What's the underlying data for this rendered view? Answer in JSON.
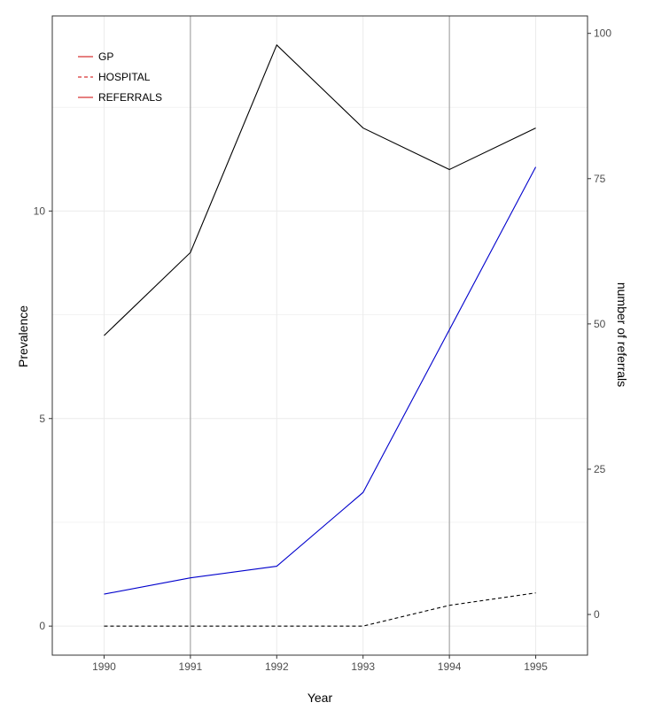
{
  "chart_data": {
    "type": "line",
    "title": "",
    "xlabel": "Year",
    "ylabel": "Prevalence",
    "y2label": "number of referrals",
    "x": [
      1990,
      1991,
      1992,
      1993,
      1994,
      1995
    ],
    "xticks": [
      "1990",
      "1991",
      "1992",
      "1993",
      "1994",
      "1995"
    ],
    "ylim": [
      -0.7,
      14.7
    ],
    "yticks": [
      0,
      5,
      10
    ],
    "y2lim": [
      -7,
      103
    ],
    "y2ticks": [
      0,
      25,
      50,
      75,
      100
    ],
    "series": [
      {
        "name": "GP",
        "axis": "left",
        "color": "#000000",
        "dash": "solid",
        "values": [
          7.0,
          9.0,
          14.0,
          12.0,
          11.0,
          12.0
        ]
      },
      {
        "name": "HOSPITAL",
        "axis": "left",
        "color": "#000000",
        "dash": "dashed",
        "values": [
          0.0,
          0.0,
          0.0,
          0.0,
          0.5,
          0.8
        ]
      },
      {
        "name": "REFERRALS",
        "axis": "right",
        "color": "#0000cc",
        "dash": "solid",
        "values": [
          3.5,
          6.3,
          8.3,
          21.0,
          49.0,
          77.0
        ]
      }
    ],
    "vlines": [
      1991,
      1994
    ],
    "legend": {
      "position": "top-left",
      "entries": [
        {
          "label": "GP",
          "color": "#cc0000",
          "dash": "solid"
        },
        {
          "label": "HOSPITAL",
          "color": "#cc0000",
          "dash": "dashed"
        },
        {
          "label": "REFERRALS",
          "color": "#cc0000",
          "dash": "solid"
        }
      ]
    },
    "colors": {
      "y2label": "#0000cc",
      "grid": "#ebebeb",
      "vline": "#999999",
      "axis": "#333333"
    },
    "grid": true
  }
}
